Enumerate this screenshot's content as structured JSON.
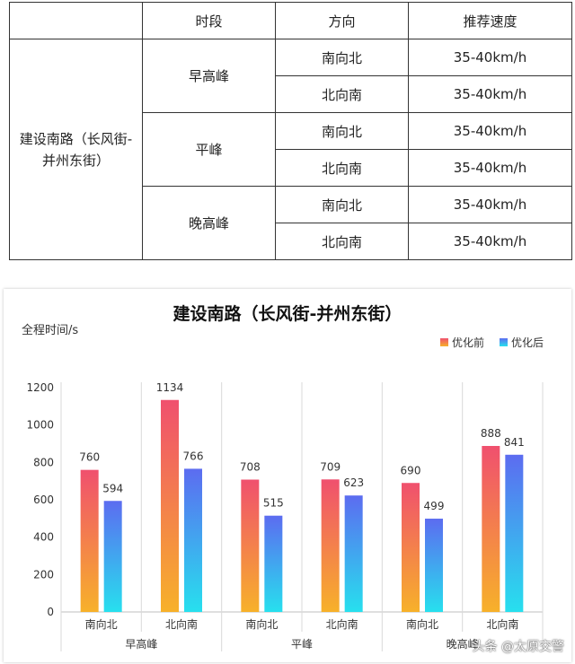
{
  "table": {
    "headers": [
      "时段",
      "方向",
      "推荐速度"
    ],
    "road": "建设南路（长风街-并州东街）",
    "periods": [
      {
        "name": "早高峰",
        "rows": [
          {
            "direction": "南向北",
            "speed": "35-40km/h"
          },
          {
            "direction": "北向南",
            "speed": "35-40km/h"
          }
        ]
      },
      {
        "name": "平峰",
        "rows": [
          {
            "direction": "南向北",
            "speed": "35-40km/h"
          },
          {
            "direction": "北向南",
            "speed": "35-40km/h"
          }
        ]
      },
      {
        "name": "晚高峰",
        "rows": [
          {
            "direction": "南向北",
            "speed": "35-40km/h"
          },
          {
            "direction": "北向南",
            "speed": "35-40km/h"
          }
        ]
      }
    ]
  },
  "chart_data": {
    "type": "bar",
    "title": "建设南路（长风街-并州东街）",
    "ylabel": "全程时间/s",
    "xlabel": "",
    "ylim": [
      0,
      1200
    ],
    "yticks": [
      0,
      200,
      400,
      600,
      800,
      1000,
      1200
    ],
    "categories": [
      "南向北",
      "北向南",
      "南向北",
      "北向南",
      "南向北",
      "北向南"
    ],
    "groups": [
      {
        "label": "早高峰"
      },
      {
        "label": "平峰"
      },
      {
        "label": "晚高峰"
      }
    ],
    "series": [
      {
        "name": "优化前",
        "values": [
          760,
          1134,
          708,
          709,
          690,
          888
        ],
        "color_top": "#f0506e",
        "color_bottom": "#f7b12a"
      },
      {
        "name": "优化后",
        "values": [
          594,
          766,
          515,
          623,
          499,
          841
        ],
        "color_top": "#5c6cf0",
        "color_bottom": "#27e0ee"
      }
    ],
    "legend_position": "top-right",
    "grid": false
  },
  "watermark": "头条 @太原交警"
}
